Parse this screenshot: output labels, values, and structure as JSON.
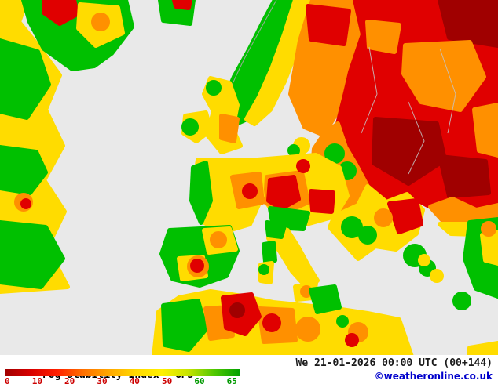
{
  "map": {
    "name": "Fog Stability Index map of Europe",
    "palette": {
      "sea": "#e9e9e9",
      "green": "#00c000",
      "yellow": "#ffdc00",
      "orange": "#ff9000",
      "red": "#e00000",
      "darkred": "#a00000"
    }
  },
  "footer": {
    "product_label": "Fog Stability Index",
    "model_label": "GFS",
    "datetime_label": "We 21-01-2026 00:00 UTC (00+144)",
    "credit": "©weatheronline.co.uk",
    "credit_color": "#0000cc"
  },
  "legend": {
    "gradient": [
      "#a00000",
      "#d80000",
      "#ff2000",
      "#ff7000",
      "#ffa800",
      "#ffd800",
      "#fff000",
      "#c8e400",
      "#50c800",
      "#00a000"
    ],
    "ticks": [
      {
        "label": "0",
        "color": "#cc0000"
      },
      {
        "label": "10",
        "color": "#cc0000"
      },
      {
        "label": "20",
        "color": "#cc0000"
      },
      {
        "label": "30",
        "color": "#cc0000"
      },
      {
        "label": "40",
        "color": "#cc0000"
      },
      {
        "label": "50",
        "color": "#cc0000"
      },
      {
        "label": "60",
        "color": "#009900"
      },
      {
        "label": "65",
        "color": "#009900"
      }
    ]
  }
}
